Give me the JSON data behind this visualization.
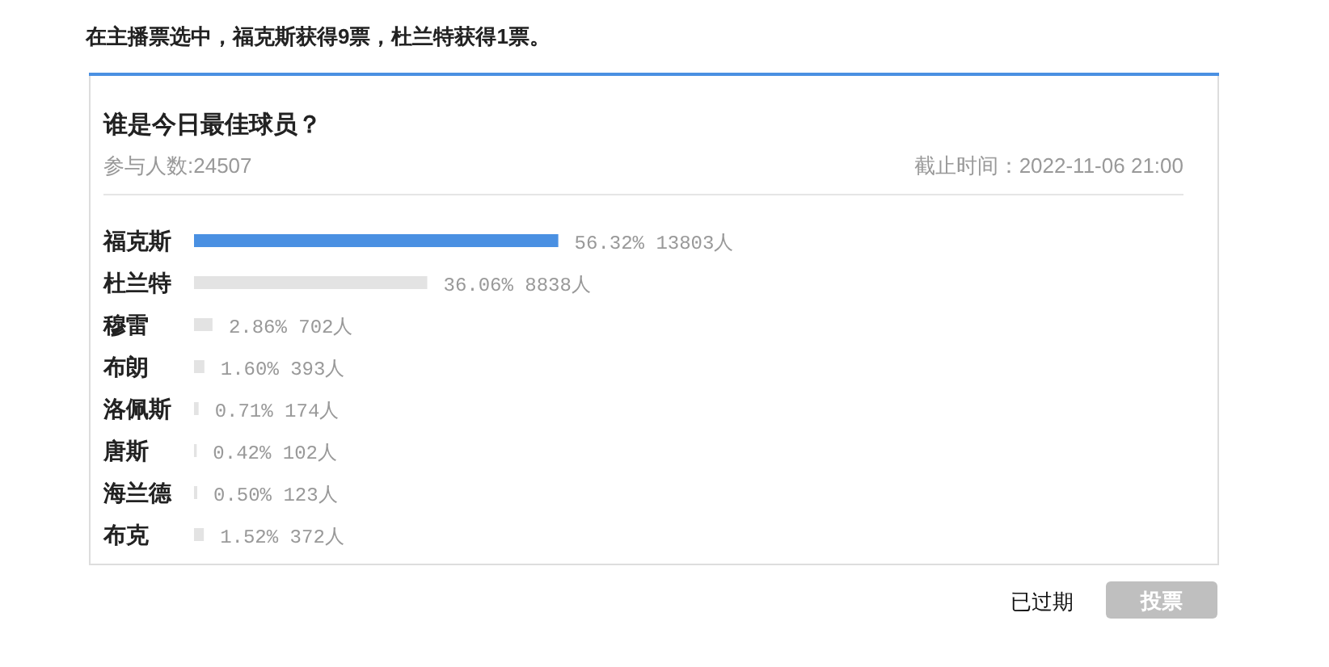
{
  "chart_data": {
    "type": "bar",
    "orientation": "horizontal",
    "title": "在主播票选中，福克斯获得9票，杜兰特获得1票。",
    "subtitle": "谁是今日最佳球员？",
    "categories": [
      "福克斯",
      "杜兰特",
      "穆雷",
      "布朗",
      "洛佩斯",
      "唐斯",
      "海兰德",
      "布克"
    ],
    "values": [
      56.32,
      36.06,
      2.86,
      1.6,
      0.71,
      0.42,
      0.5,
      1.52
    ],
    "value_labels": [
      "56.32% 13803人",
      "36.06% 8838人",
      "2.86% 702人",
      "1.60% 393人",
      "0.71% 174人",
      "0.42% 102人",
      "0.50% 123人",
      "1.52% 372人"
    ],
    "colors": [
      "#4a90e2",
      "#e3e3e3",
      "#e3e3e3",
      "#e3e3e3",
      "#e3e3e3",
      "#e3e3e3",
      "#e3e3e3",
      "#e3e3e3"
    ],
    "annotations": [
      "参与人数:24507",
      "截止时间：2022-11-06 21:00",
      "已过期",
      "投票"
    ]
  }
}
